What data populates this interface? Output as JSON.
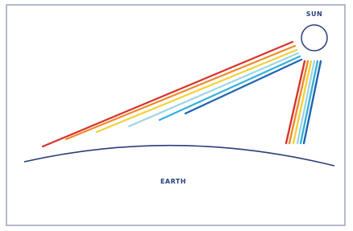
{
  "labels": {
    "sun": "SUN",
    "earth": "EARTH"
  }
}
